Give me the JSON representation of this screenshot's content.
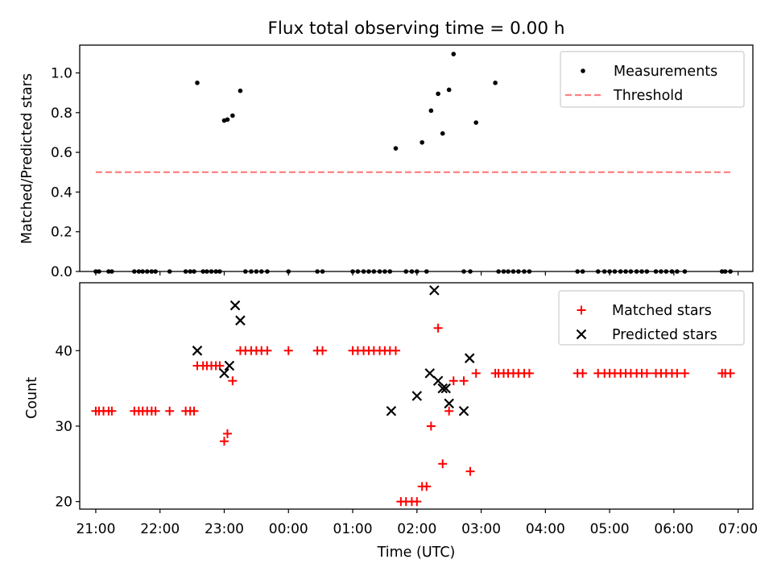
{
  "figure": {
    "title": "Flux total observing time = 0.00 h"
  },
  "chart_data": [
    {
      "type": "scatter",
      "panel": "top",
      "ylabel": "Matched/Predicted stars",
      "xlabel": "",
      "xlim": [
        20.75,
        31.23
      ],
      "ylim": [
        0.0,
        1.14
      ],
      "yticks": [
        0.0,
        0.2,
        0.4,
        0.6,
        0.8,
        1.0
      ],
      "ytick_labels": [
        "0.0",
        "0.2",
        "0.4",
        "0.6",
        "0.8",
        "1.0"
      ],
      "grid": false,
      "legend": {
        "placement": "upper right",
        "entries": [
          "Measurements",
          "Threshold"
        ]
      },
      "series": [
        {
          "name": "Measurements",
          "marker": "dot",
          "color": "#000000",
          "x": [
            21.0,
            21.05,
            21.2,
            21.25,
            21.6,
            21.67,
            21.73,
            21.8,
            21.87,
            21.93,
            22.15,
            22.4,
            22.47,
            22.53,
            22.58,
            22.67,
            22.73,
            22.8,
            22.87,
            22.93,
            23.0,
            23.05,
            23.13,
            23.25,
            23.33,
            23.42,
            23.5,
            23.58,
            23.67,
            24.0,
            24.45,
            24.53,
            25.0,
            25.08,
            25.17,
            25.25,
            25.33,
            25.42,
            25.5,
            25.58,
            25.67,
            25.83,
            25.92,
            26.0,
            26.08,
            26.15,
            26.22,
            26.33,
            26.4,
            26.5,
            26.57,
            26.73,
            26.83,
            26.92,
            27.22,
            27.27,
            27.35,
            27.42,
            27.5,
            27.58,
            27.67,
            27.75,
            28.5,
            28.58,
            28.82,
            28.92,
            29.0,
            29.08,
            29.17,
            29.25,
            29.33,
            29.42,
            29.5,
            29.58,
            29.72,
            29.8,
            29.88,
            29.97,
            30.05,
            30.17,
            30.75,
            30.8,
            30.88
          ],
          "y": [
            0.0,
            0.0,
            0.0,
            0.0,
            0.0,
            0.0,
            0.0,
            0.0,
            0.0,
            0.0,
            0.0,
            0.0,
            0.0,
            0.0,
            0.95,
            0.0,
            0.0,
            0.0,
            0.0,
            0.0,
            0.76,
            0.765,
            0.785,
            0.91,
            0.0,
            0.0,
            0.0,
            0.0,
            0.0,
            0.0,
            0.0,
            0.0,
            0.0,
            0.0,
            0.0,
            0.0,
            0.0,
            0.0,
            0.0,
            0.0,
            0.62,
            0.0,
            0.0,
            0.0,
            0.65,
            0.0,
            0.81,
            0.895,
            0.695,
            0.915,
            1.095,
            0.0,
            0.0,
            0.75,
            0.95,
            0.0,
            0.0,
            0.0,
            0.0,
            0.0,
            0.0,
            0.0,
            0.0,
            0.0,
            0.0,
            0.0,
            0.0,
            0.0,
            0.0,
            0.0,
            0.0,
            0.0,
            0.0,
            0.0,
            0.0,
            0.0,
            0.0,
            0.0,
            0.0,
            0.0,
            0.0,
            0.0,
            0.0
          ]
        },
        {
          "name": "Threshold",
          "style": "dashed-line",
          "color": "#ff8080",
          "x": [
            21.0,
            30.9
          ],
          "y": [
            0.5,
            0.5
          ]
        }
      ]
    },
    {
      "type": "scatter",
      "panel": "bottom",
      "ylabel": "Count",
      "xlabel": "Time (UTC)",
      "xlim": [
        20.75,
        31.23
      ],
      "ylim": [
        19.0,
        49.0
      ],
      "yticks": [
        20,
        30,
        40
      ],
      "ytick_labels": [
        "20",
        "30",
        "40"
      ],
      "xticks": [
        21,
        22,
        23,
        24,
        25,
        26,
        27,
        28,
        29,
        30,
        31
      ],
      "xtick_labels": [
        "21:00",
        "22:00",
        "23:00",
        "00:00",
        "01:00",
        "02:00",
        "03:00",
        "04:00",
        "05:00",
        "06:00",
        "07:00"
      ],
      "grid": false,
      "legend": {
        "placement": "upper right",
        "entries": [
          "Matched stars",
          "Predicted stars"
        ]
      },
      "series": [
        {
          "name": "Matched stars",
          "marker": "plus",
          "color": "#ff0000",
          "x": [
            21.0,
            21.05,
            21.12,
            21.2,
            21.25,
            21.6,
            21.67,
            21.73,
            21.8,
            21.87,
            21.93,
            22.15,
            22.4,
            22.47,
            22.53,
            22.58,
            22.67,
            22.73,
            22.8,
            22.87,
            22.93,
            23.0,
            23.05,
            23.13,
            23.25,
            23.33,
            23.42,
            23.5,
            23.58,
            23.67,
            24.0,
            24.45,
            24.53,
            25.0,
            25.08,
            25.17,
            25.25,
            25.33,
            25.42,
            25.5,
            25.58,
            25.67,
            25.75,
            25.83,
            25.92,
            26.0,
            26.08,
            26.15,
            26.22,
            26.33,
            26.4,
            26.5,
            26.57,
            26.73,
            26.83,
            26.92,
            27.22,
            27.27,
            27.35,
            27.42,
            27.5,
            27.58,
            27.67,
            27.75,
            28.5,
            28.58,
            28.82,
            28.92,
            29.0,
            29.08,
            29.17,
            29.25,
            29.33,
            29.42,
            29.5,
            29.58,
            29.72,
            29.8,
            29.88,
            29.97,
            30.05,
            30.17,
            30.75,
            30.8,
            30.88
          ],
          "y": [
            32,
            32,
            32,
            32,
            32,
            32,
            32,
            32,
            32,
            32,
            32,
            32,
            32,
            32,
            32,
            38,
            38,
            38,
            38,
            38,
            38,
            28,
            29,
            36,
            40,
            40,
            40,
            40,
            40,
            40,
            40,
            40,
            40,
            40,
            40,
            40,
            40,
            40,
            40,
            40,
            40,
            40,
            20,
            20,
            20,
            20,
            22,
            22,
            30,
            43,
            25,
            32,
            36,
            36,
            24,
            37,
            37,
            37,
            37,
            37,
            37,
            37,
            37,
            37,
            37,
            37,
            37,
            37,
            37,
            37,
            37,
            37,
            37,
            37,
            37,
            37,
            37,
            37,
            37,
            37,
            37,
            37,
            37,
            37,
            37
          ]
        },
        {
          "name": "Predicted stars",
          "marker": "x",
          "color": "#000000",
          "x": [
            22.58,
            23.0,
            23.08,
            23.17,
            23.25,
            25.6,
            26.0,
            26.2,
            26.27,
            26.33,
            26.4,
            26.45,
            26.5,
            26.73,
            26.82
          ],
          "y": [
            40,
            37,
            38,
            46,
            44,
            32,
            34,
            37,
            48,
            36,
            35,
            35,
            33,
            32,
            39
          ]
        }
      ]
    }
  ]
}
